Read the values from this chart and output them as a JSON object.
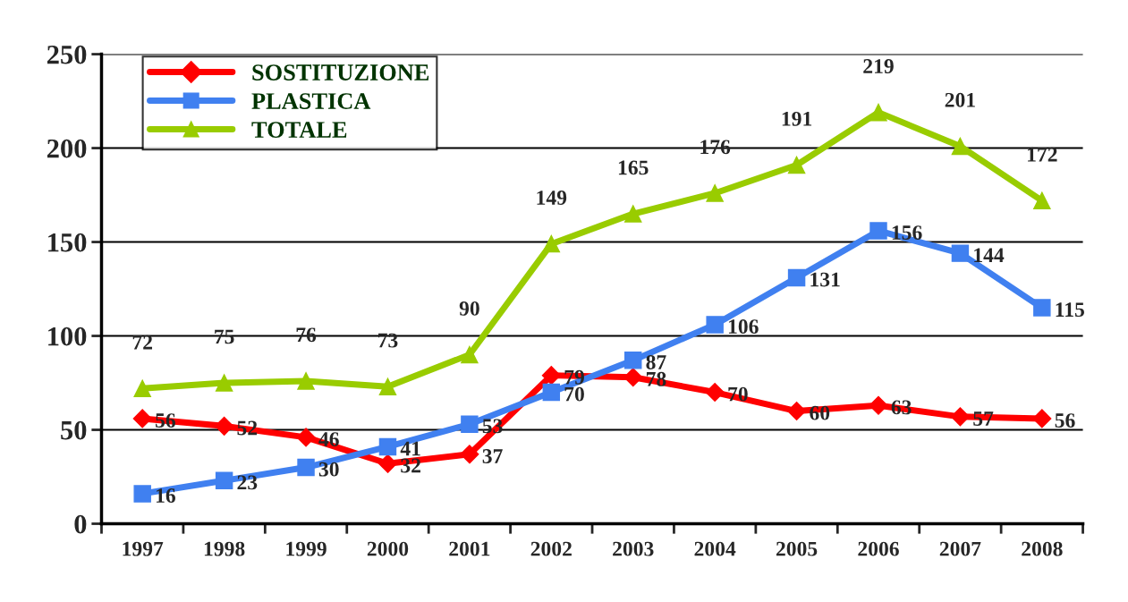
{
  "chart_data": {
    "type": "line",
    "categories": [
      "1997",
      "1998",
      "1999",
      "2000",
      "2001",
      "2002",
      "2003",
      "2004",
      "2005",
      "2006",
      "2007",
      "2008"
    ],
    "series": [
      {
        "name": "SOSTITUZIONE",
        "color": "#ff0000",
        "marker": "diamond",
        "values": [
          56,
          52,
          46,
          32,
          37,
          79,
          78,
          70,
          60,
          63,
          57,
          56
        ]
      },
      {
        "name": "PLASTICA",
        "color": "#4080f0",
        "marker": "square",
        "values": [
          16,
          23,
          30,
          41,
          53,
          70,
          87,
          106,
          131,
          156,
          144,
          115
        ]
      },
      {
        "name": "TOTALE",
        "color": "#99cc00",
        "marker": "triangle",
        "values": [
          72,
          75,
          76,
          73,
          90,
          149,
          165,
          176,
          191,
          219,
          201,
          172
        ]
      }
    ],
    "ylim": [
      0,
      250
    ],
    "yticks": [
      0,
      50,
      100,
      150,
      200,
      250
    ],
    "grid": "y",
    "legend": "top left",
    "data_labels": true,
    "line_style": "solid"
  }
}
